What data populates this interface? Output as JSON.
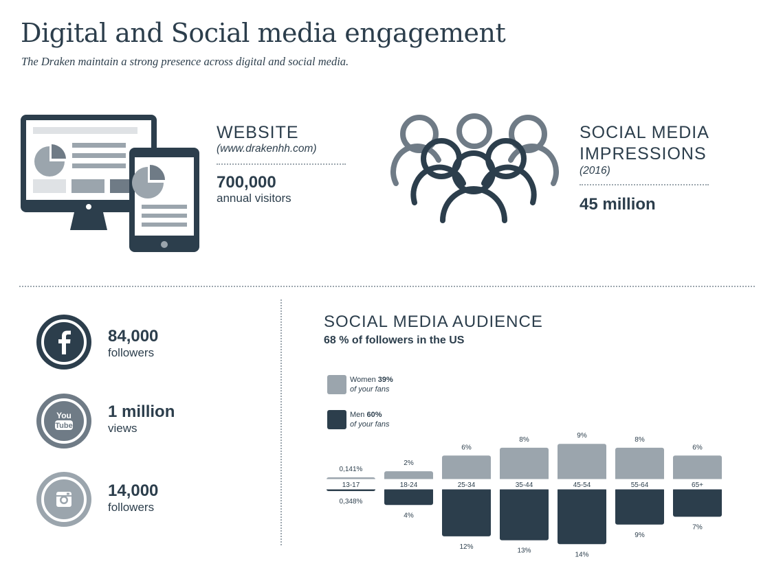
{
  "header": {
    "title": "Digital and Social media engagement",
    "subtitle": "The Draken maintain a strong presence across digital and social media."
  },
  "website": {
    "heading": "WEBSITE",
    "url": "(www.drakenhh.com)",
    "value": "700,000",
    "caption": "annual visitors"
  },
  "impressions": {
    "heading_line1": "SOCIAL MEDIA",
    "heading_line2": "IMPRESSIONS",
    "year": "(2016)",
    "value": "45 million"
  },
  "socials": [
    {
      "platform": "facebook",
      "icon": "facebook-icon",
      "value": "84,000",
      "caption": "followers",
      "color": "#2c3e4c"
    },
    {
      "platform": "youtube",
      "icon": "youtube-icon",
      "value": "1 million",
      "caption": "views",
      "color": "#6f7b86"
    },
    {
      "platform": "instagram",
      "icon": "instagram-icon",
      "value": "14,000",
      "caption": "followers",
      "color": "#9ba5ad"
    }
  ],
  "audience": {
    "heading": "SOCIAL MEDIA AUDIENCE",
    "subheading": "68 % of followers in the US",
    "legend": {
      "women_label": "Women",
      "women_pct": "39%",
      "men_label": "Men",
      "men_pct": "60%",
      "fans_note": "of your fans"
    }
  },
  "colors": {
    "dark": "#2c3e4c",
    "mid": "#6f7b86",
    "light": "#9ba5ad"
  },
  "chart_data": {
    "type": "bar",
    "title": "SOCIAL MEDIA AUDIENCE",
    "categories": [
      "13-17",
      "18-24",
      "25-34",
      "35-44",
      "45-54",
      "55-64",
      "65+"
    ],
    "series": [
      {
        "name": "Women",
        "values": [
          0.141,
          2,
          6,
          8,
          9,
          8,
          6
        ],
        "labels": [
          "0,141%",
          "2%",
          "6%",
          "8%",
          "9%",
          "8%",
          "6%"
        ],
        "color": "#9ba5ad"
      },
      {
        "name": "Men",
        "values": [
          0.348,
          4,
          12,
          13,
          14,
          9,
          7
        ],
        "labels": [
          "0,348%",
          "4%",
          "12%",
          "13%",
          "14%",
          "9%",
          "7%"
        ],
        "color": "#2c3e4c"
      }
    ],
    "xlabel": "",
    "ylabel": "",
    "ylim": [
      0,
      14
    ]
  }
}
